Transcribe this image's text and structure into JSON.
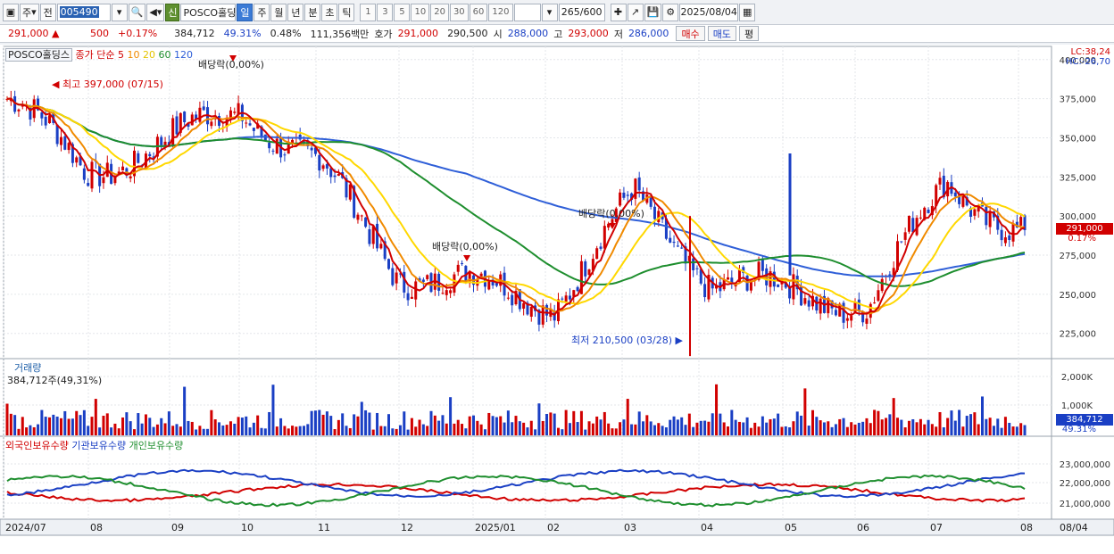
{
  "toolbar": {
    "period_label": "주",
    "prev_label": "전",
    "stock_code": "005490",
    "shin_label": "신",
    "stock_name": "POSCO홀딩스",
    "interval_tabs": [
      "일",
      "주",
      "월",
      "년",
      "분",
      "초",
      "틱"
    ],
    "interval_selected": "일",
    "minute_options": [
      "1",
      "3",
      "5",
      "10",
      "20",
      "30",
      "60",
      "120"
    ],
    "count_value": "265",
    "count_total": "/600",
    "date_value": "2025/08/04"
  },
  "quote": {
    "price": "291,000 ▲",
    "change": "500",
    "change_pct": "+0.17%",
    "volume": "384,712",
    "volume_pct": "49.31%",
    "turnover_pct": "0.48%",
    "amount": "111,356백만",
    "ask_label": "호가",
    "ask": "291,000",
    "bid": "290,500",
    "open_label": "시",
    "open": "288,000",
    "high_label": "고",
    "high": "293,000",
    "low_label": "저",
    "low": "286,000",
    "buy_label": "매수",
    "sell_label": "매도",
    "eval_label": "평"
  },
  "price_panel": {
    "stock_name": "POSCO홀딩스",
    "ma_label": "종가 단순",
    "ma_periods": [
      "5",
      "10",
      "20",
      "60",
      "120"
    ],
    "lc": "LC:38,24",
    "hc": "HC:-26,70",
    "high_annotation": "최고 397,000 (07/15)",
    "low_annotation": "최저 210,500 (03/28)",
    "dividend_label": "배당락(0,00%)",
    "last_price_box": "291,000",
    "last_change_box": "0.17%",
    "y_ticks": [
      "400,000",
      "375,000",
      "350,000",
      "325,000",
      "300,000",
      "275,000",
      "250,000",
      "225,000"
    ]
  },
  "volume_panel": {
    "title": "거래량",
    "value_label": "384,712주(49,31%)",
    "y_ticks": [
      "2,000K",
      "1,000K"
    ],
    "last_box": "384,712",
    "last_pct_box": "49.31%"
  },
  "holding_panel": {
    "series": [
      "외국인보유수량",
      "기관보유수량",
      "개인보유수량"
    ],
    "y_ticks": [
      "23,000,000",
      "22,000,000",
      "21,000,000"
    ]
  },
  "x_axis": {
    "labels": [
      "2024/07",
      "08",
      "09",
      "10",
      "11",
      "12",
      "2025/01",
      "02",
      "03",
      "04",
      "05",
      "06",
      "07",
      "08"
    ],
    "right_label": "08/04"
  },
  "colors": {
    "up": "#d10000",
    "down": "#1a3fc4",
    "ma5": "#d10000",
    "ma10": "#f08a00",
    "ma20": "#ffd800",
    "ma60": "#1e8e2e",
    "ma120": "#2f5fd8"
  },
  "chart_data": {
    "type": "candlestick",
    "x": [
      "2024/07",
      "08",
      "09",
      "10",
      "11",
      "12",
      "2025/01",
      "02",
      "03",
      "04",
      "05",
      "06",
      "07",
      "08"
    ],
    "close_monthly_approx": [
      375000,
      330000,
      345000,
      370000,
      330000,
      265000,
      255000,
      245000,
      310000,
      260000,
      250000,
      245000,
      320000,
      291000
    ],
    "ylim": [
      210000,
      405000
    ]
  }
}
